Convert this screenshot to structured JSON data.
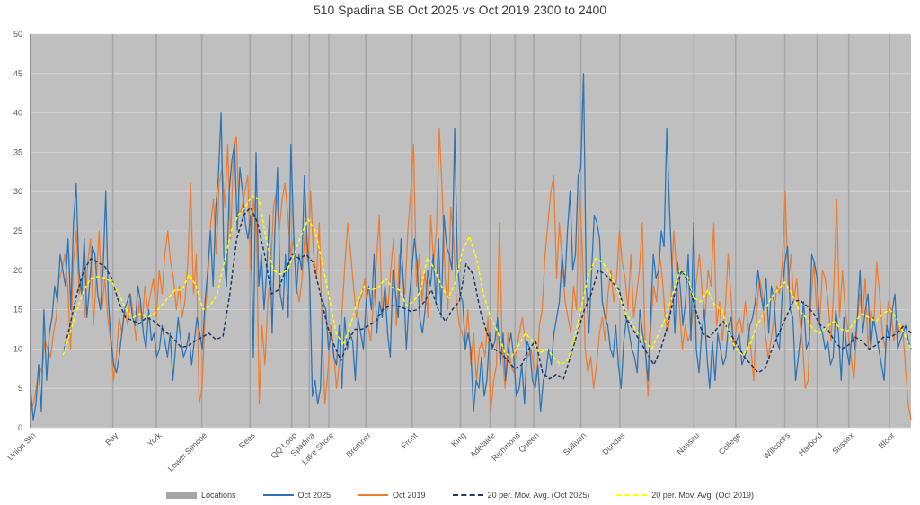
{
  "chart_data": {
    "type": "line",
    "title": "510 Spadina SB Oct 2025 vs Oct 2019 2300 to 2400",
    "ylim": [
      0,
      50
    ],
    "yticks": [
      0,
      5,
      10,
      15,
      20,
      25,
      30,
      35,
      40,
      45,
      50
    ],
    "grid": true,
    "legend_placement": "bottom",
    "location_labels": [
      "Union Stn",
      "Bay",
      "York",
      "Lower Simcoe",
      "Rees",
      "QQ Loop",
      "Spadina",
      "Lake Shore",
      "Bremner",
      "Front",
      "King",
      "Adelaide",
      "Richmond",
      "Queen",
      "Sullivan",
      "Dundas",
      "Nassau",
      "College",
      "Willcocks",
      "Harbord",
      "Sussex",
      "Bloor"
    ],
    "location_positions": [
      0,
      8.9,
      13.6,
      18.5,
      23.7,
      28.2,
      30.1,
      32.2,
      36.2,
      41.2,
      46.4,
      49.6,
      52.3,
      54.3,
      59.4,
      63.6,
      71.6,
      76.1,
      81.4,
      84.9,
      88.3,
      92.7
    ],
    "x_range": [
      0,
      95
    ],
    "series": [
      {
        "name": "Locations",
        "kind": "bar",
        "color": "#a6a6a6"
      },
      {
        "name": "Oct 2025",
        "kind": "line",
        "color": "#2e75b6",
        "values": [
          5,
          1,
          3,
          8,
          2,
          15,
          6,
          12,
          14,
          18,
          16,
          22,
          20,
          18,
          24,
          15,
          26,
          31,
          20,
          17,
          24,
          14,
          18,
          23,
          22,
          17,
          15,
          20,
          30,
          16,
          11,
          8,
          7,
          9,
          12,
          15,
          16,
          17,
          14,
          13,
          18,
          16,
          12,
          10,
          15,
          11,
          12,
          9,
          10,
          13,
          11,
          9,
          12,
          6,
          10,
          14,
          11,
          9,
          10,
          12,
          8,
          11,
          14,
          12,
          10,
          16,
          20,
          25,
          18,
          28,
          32,
          40,
          22,
          18,
          30,
          34,
          36,
          25,
          33,
          30,
          26,
          24,
          27,
          9,
          35,
          18,
          22,
          15,
          20,
          27,
          12,
          25,
          33,
          17,
          15,
          22,
          14,
          36,
          25,
          17,
          22,
          20,
          32,
          24,
          19,
          4,
          6,
          3,
          5,
          16,
          15,
          10,
          12,
          9,
          8,
          13,
          5,
          14,
          10,
          12,
          11,
          6,
          14,
          12,
          10,
          16,
          18,
          15,
          22,
          12,
          16,
          14,
          18,
          12,
          9,
          20,
          17,
          14,
          24,
          18,
          10,
          16,
          20,
          24,
          21,
          14,
          12,
          15,
          20,
          18,
          22,
          16,
          24,
          14,
          27,
          23,
          22,
          20,
          38,
          21,
          17,
          16,
          10,
          12,
          10,
          2,
          6,
          5,
          9,
          4,
          6,
          12,
          10,
          11,
          14,
          8,
          12,
          6,
          10,
          12,
          9,
          4,
          5,
          8,
          3,
          11,
          10,
          6,
          5,
          8,
          2,
          6,
          7,
          10,
          8,
          12,
          14,
          16,
          22,
          18,
          25,
          30,
          20,
          22,
          32,
          33,
          45,
          18,
          12,
          20,
          27,
          26,
          24,
          16,
          14,
          13,
          10,
          9,
          13,
          8,
          5,
          11,
          14,
          12,
          10,
          9,
          7,
          15,
          12,
          10,
          6,
          14,
          22,
          19,
          20,
          25,
          23,
          38,
          28,
          20,
          12,
          21,
          18,
          13,
          16,
          22,
          11,
          26,
          10,
          7,
          12,
          15,
          9,
          5,
          11,
          6,
          12,
          10,
          8,
          9,
          13,
          14,
          10,
          11,
          12,
          8,
          9,
          10,
          13,
          14,
          16,
          20,
          17,
          15,
          19,
          12,
          18,
          16,
          11,
          10,
          17,
          21,
          23,
          15,
          14,
          6,
          9,
          12,
          16,
          10,
          11,
          22,
          21,
          19,
          13,
          12,
          10,
          11,
          8,
          9,
          15,
          12,
          6,
          14,
          10,
          8,
          12,
          10,
          14,
          20,
          12,
          15,
          17,
          10,
          14,
          12,
          10,
          8,
          6,
          13,
          11,
          15,
          17,
          10,
          11,
          12,
          13,
          11,
          10
        ]
      },
      {
        "name": "Oct 2019",
        "kind": "line",
        "color": "#ed7d31",
        "values": [
          2,
          3,
          5,
          8,
          7,
          11,
          10,
          9,
          12,
          14,
          19,
          20,
          22,
          18,
          10,
          21,
          25,
          17,
          19,
          14,
          21,
          24,
          13,
          19,
          25,
          15,
          19,
          14,
          11,
          6,
          9,
          14,
          12,
          15,
          13,
          17,
          14,
          11,
          16,
          13,
          18,
          15,
          17,
          19,
          14,
          20,
          17,
          22,
          25,
          21,
          19,
          15,
          18,
          14,
          16,
          21,
          31,
          17,
          22,
          3,
          5,
          14,
          19,
          26,
          29,
          22,
          31,
          33,
          28,
          36,
          24,
          35,
          37,
          27,
          28,
          30,
          32,
          20,
          29,
          26,
          3,
          13,
          8,
          16,
          20,
          28,
          30,
          25,
          29,
          31,
          27,
          22,
          24,
          18,
          16,
          19,
          25,
          21,
          30,
          22,
          19,
          26,
          12,
          3,
          7,
          13,
          10,
          5,
          8,
          15,
          21,
          26,
          22,
          18,
          14,
          16,
          17,
          19,
          13,
          11,
          16,
          21,
          27,
          14,
          18,
          15,
          20,
          24,
          13,
          22,
          19,
          17,
          25,
          30,
          36,
          18,
          22,
          16,
          20,
          14,
          27,
          21,
          25,
          38,
          30,
          19,
          15,
          28,
          24,
          16,
          13,
          12,
          10,
          15,
          8,
          12,
          6,
          10,
          11,
          9,
          14,
          2,
          6,
          8,
          26,
          10,
          5,
          12,
          8,
          7,
          10,
          12,
          14,
          11,
          9,
          10,
          8,
          6,
          13,
          15,
          22,
          26,
          30,
          32,
          19,
          26,
          21,
          16,
          14,
          12,
          18,
          15,
          30,
          23,
          10,
          7,
          9,
          5,
          8,
          12,
          14,
          11,
          17,
          20,
          16,
          19,
          25,
          21,
          19,
          15,
          22,
          14,
          17,
          20,
          26,
          10,
          4,
          13,
          18,
          16,
          22,
          19,
          14,
          12,
          16,
          25,
          20,
          15,
          10,
          13,
          11,
          12,
          16,
          19,
          22,
          17,
          14,
          20,
          18,
          26,
          13,
          16,
          11,
          15,
          22,
          17,
          10,
          13,
          14,
          12,
          16,
          13,
          10,
          6,
          15,
          19,
          17,
          12,
          9,
          11,
          14,
          18,
          17,
          21,
          30,
          18,
          22,
          16,
          19,
          14,
          11,
          5,
          6,
          16,
          21,
          15,
          13,
          20,
          19,
          16,
          11,
          18,
          29,
          14,
          20,
          15,
          12,
          9,
          6,
          12,
          17,
          14,
          19,
          10,
          15,
          13,
          21,
          17,
          12,
          10,
          16,
          15,
          11,
          14,
          12,
          13,
          8,
          3,
          1
        ]
      },
      {
        "name": "20 per. Mov. Avg. (Oct 2025)",
        "kind": "dashed",
        "color": "#1f3864",
        "values": [
          9.2,
          13,
          17,
          20,
          21.5,
          21,
          20.5,
          19,
          16,
          14,
          13.6,
          13.2,
          14,
          13.6,
          12.8,
          12,
          11.2,
          10.2,
          10.4,
          11,
          11.5,
          12,
          11.2,
          11.6,
          17,
          24,
          27,
          28,
          26,
          22,
          17,
          17.5,
          20,
          22,
          21.5,
          22,
          21,
          17,
          13,
          10.5,
          8.5,
          11,
          12.5,
          12.5,
          13,
          13.5,
          15,
          15.5,
          15.5,
          15.2,
          14.8,
          15,
          16,
          17.5,
          15,
          13.5,
          15,
          16,
          20.8,
          19.5,
          15,
          12,
          10,
          9.5,
          8.5,
          7.5,
          8,
          10,
          11,
          7,
          6.2,
          6.8,
          6.2,
          9,
          12,
          15,
          17,
          20,
          19.5,
          18.5,
          17.5,
          14,
          12.5,
          11,
          9.5,
          8,
          10,
          13,
          17,
          20,
          18.5,
          15,
          12,
          11.5,
          12.5,
          13.5,
          12,
          10.5,
          9,
          8,
          7,
          7.5,
          10,
          12,
          14,
          16,
          16.2,
          15.5,
          14.5,
          13,
          12.5,
          11,
          10,
          10.5,
          11.5,
          11,
          10,
          10.5,
          11.5,
          11.5,
          12,
          13,
          12
        ]
      },
      {
        "name": "20 per. Mov. Avg. (Oct 2019)",
        "kind": "dashed",
        "color": "#ffff00",
        "values": [
          9.2,
          12,
          15,
          17.5,
          19,
          19.2,
          19,
          18.5,
          17,
          15,
          14,
          14.5,
          14,
          14.5,
          15.5,
          16.5,
          17.5,
          17.5,
          19.5,
          18,
          15,
          15.5,
          17,
          21,
          25,
          27,
          28,
          29.5,
          29,
          24,
          20,
          19.5,
          20,
          22,
          24.5,
          26.5,
          25,
          21,
          16.5,
          12,
          10.5,
          13,
          16,
          18,
          17.5,
          17.8,
          19,
          17.8,
          17.5,
          15.5,
          16,
          17.3,
          21.6,
          20.2,
          18,
          16.5,
          18.5,
          22.5,
          24.3,
          21.5,
          17,
          14,
          12.2,
          9.6,
          9,
          10.5,
          12,
          11,
          9.5,
          10,
          9,
          8,
          8.5,
          11.5,
          15.5,
          19.5,
          21.5,
          21,
          19.5,
          17.8,
          15,
          13.5,
          12,
          11,
          10,
          12,
          14,
          17,
          20,
          19.5,
          16.5,
          16,
          17.5,
          15.5,
          15,
          12,
          10,
          9.2,
          10.5,
          13,
          14.5,
          16.5,
          17.5,
          18.5,
          17,
          15,
          14,
          12.5,
          12,
          12.8,
          13.5,
          12.5,
          12.3,
          13.5,
          14.5,
          14,
          13.5,
          14.5,
          15,
          13.8,
          12,
          10
        ]
      }
    ]
  }
}
